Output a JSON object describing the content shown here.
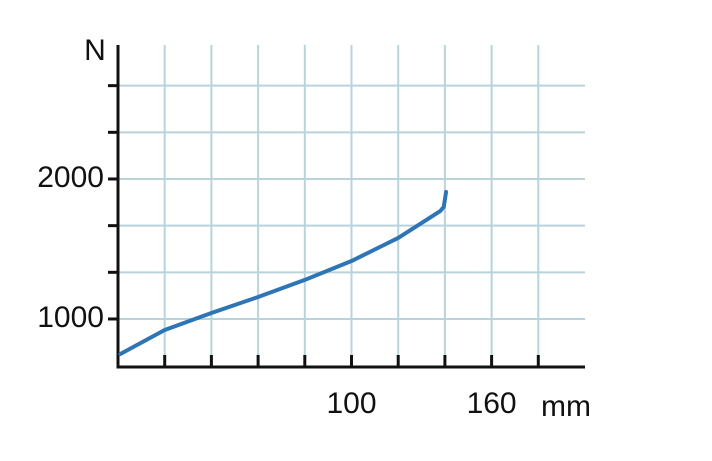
{
  "chart_data": {
    "type": "line",
    "x_label": "mm",
    "y_label": "N",
    "x": [
      1,
      20,
      40,
      60,
      80,
      100,
      120,
      138,
      139.5,
      140.5
    ],
    "series": [
      {
        "color": "#2e75b6",
        "values": [
          750,
          921,
          1043,
          1157,
          1279,
          1414,
          1579,
          1771,
          1800,
          1907
        ]
      }
    ],
    "xlim": [
      0,
      200
    ],
    "ylim": [
      657,
      2957
    ],
    "xticks": [
      100,
      160
    ],
    "yticks": [
      1000,
      2000
    ],
    "xgrid": [
      20,
      40,
      60,
      80,
      100,
      120,
      140,
      160,
      180
    ],
    "ygrid": [
      1000,
      1333.33,
      1666.67,
      2000,
      2333.33,
      2666.67
    ],
    "grid_color": "#b9d3dc"
  }
}
